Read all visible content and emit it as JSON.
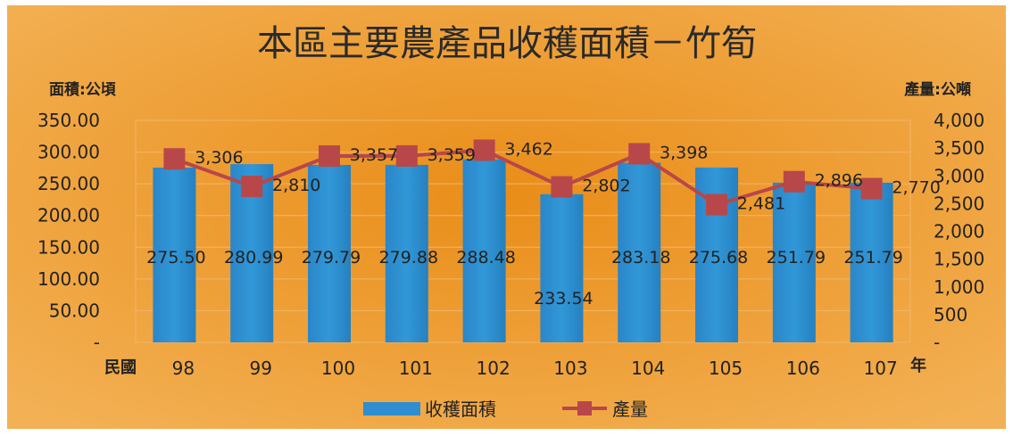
{
  "chart_data": {
    "type": "bar",
    "title": "本區主要農產品收穫面積－竹筍",
    "ylabel": "面積:公頃",
    "y2label": "產量:公噸",
    "xlabel_left": "民國",
    "xlabel_right": "年",
    "categories": [
      "98",
      "99",
      "100",
      "101",
      "102",
      "103",
      "104",
      "105",
      "106",
      "107"
    ],
    "ylim": [
      0,
      350
    ],
    "y2lim": [
      0,
      4000
    ],
    "y_ticks": [
      "-",
      "50.00",
      "100.00",
      "150.00",
      "200.00",
      "250.00",
      "300.00",
      "350.00"
    ],
    "y2_ticks": [
      "-",
      "500",
      "1,000",
      "1,500",
      "2,000",
      "2,500",
      "3,000",
      "3,500",
      "4,000"
    ],
    "grid": true,
    "legend_position": "bottom",
    "series": [
      {
        "name": "收穫面積",
        "type": "bar",
        "axis": "left",
        "color": "#2e8ed0",
        "values": [
          275.5,
          280.99,
          279.79,
          279.88,
          288.48,
          233.54,
          283.18,
          275.68,
          251.79,
          251.79
        ],
        "labels": [
          "275.50",
          "280.99",
          "279.79",
          "279.88",
          "288.48",
          "233.54",
          "283.18",
          "275.68",
          "251.79",
          "251.79"
        ]
      },
      {
        "name": "產量",
        "type": "line",
        "axis": "right",
        "color": "#b8474a",
        "values": [
          3306,
          2810,
          3357,
          3359,
          3462,
          2802,
          3398,
          2481,
          2896,
          2770
        ],
        "labels": [
          "3,306",
          "2,810",
          "3,357",
          "3,359",
          "3,462",
          "2,802",
          "3,398",
          "2,481",
          "2,896",
          "2,770"
        ]
      }
    ],
    "colors": {
      "background_outer": "#f1ab4a",
      "background_inner": "#e68f20",
      "gridline": "#f2b56a",
      "text": "#222222"
    }
  }
}
